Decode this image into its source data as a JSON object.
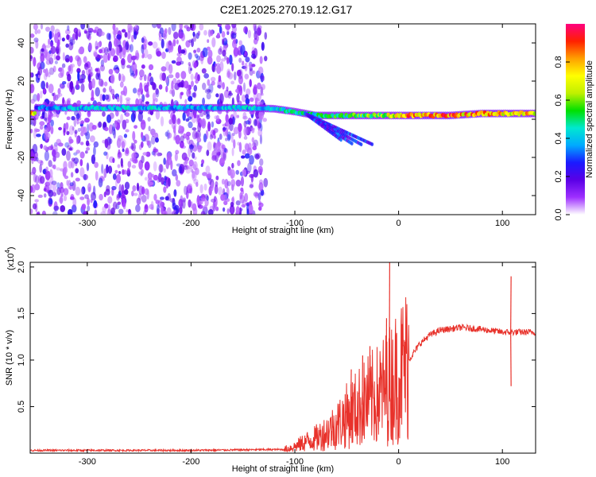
{
  "title": "C2E1.2025.270.19.12.G17",
  "chart_data": [
    {
      "type": "heatmap",
      "name": "spectrogram",
      "xlabel": "Height of straight line (km)",
      "ylabel": "Frequency (Hz)",
      "xlim": [
        -355,
        132
      ],
      "ylim": [
        -50,
        50
      ],
      "xticks": [
        -300,
        -200,
        -100,
        0,
        100
      ],
      "yticks": [
        -40,
        -20,
        0,
        20,
        40
      ],
      "colorbar": {
        "label": "Normalized spectral amplitude",
        "range": [
          0,
          1
        ],
        "ticks": [
          0.0,
          0.2,
          0.4,
          0.6,
          0.8
        ],
        "colormap": [
          "#ffffff",
          "#9e30ff",
          "#5a00e6",
          "#1a1aff",
          "#00aaff",
          "#00e8d0",
          "#00e000",
          "#c0f000",
          "#ffff00",
          "#ffa000",
          "#ff2000",
          "#ff0080"
        ]
      },
      "ridge": [
        {
          "x": -350,
          "f": 6,
          "amp": 0.35
        },
        {
          "x": -300,
          "f": 6,
          "amp": 0.45
        },
        {
          "x": -250,
          "f": 6,
          "amp": 0.45
        },
        {
          "x": -200,
          "f": 6,
          "amp": 0.4
        },
        {
          "x": -150,
          "f": 6,
          "amp": 0.45
        },
        {
          "x": -120,
          "f": 5.5,
          "amp": 0.45
        },
        {
          "x": -100,
          "f": 4,
          "amp": 0.5
        },
        {
          "x": -80,
          "f": 2,
          "amp": 0.5
        },
        {
          "x": -60,
          "f": 2,
          "amp": 0.55
        },
        {
          "x": -40,
          "f": 2,
          "amp": 0.6
        },
        {
          "x": -20,
          "f": 2,
          "amp": 0.6
        },
        {
          "x": 0,
          "f": 2,
          "amp": 0.85
        },
        {
          "x": 20,
          "f": 2,
          "amp": 0.9
        },
        {
          "x": 50,
          "f": 2,
          "amp": 0.9
        },
        {
          "x": 80,
          "f": 3,
          "amp": 0.85
        },
        {
          "x": 100,
          "f": 3,
          "amp": 0.85
        },
        {
          "x": 132,
          "f": 3,
          "amp": 0.8
        }
      ],
      "noise_region_xlim": [
        -355,
        -128
      ],
      "noise_f_range": [
        -50,
        50
      ]
    },
    {
      "type": "line",
      "name": "snr",
      "xlabel": "Height of straight line (km)",
      "ylabel": "SNR (10 * v/v)",
      "exponent_label": "(x10",
      "exponent_value": "4",
      "exponent_close": ")",
      "xlim": [
        -355,
        132
      ],
      "ylim": [
        0,
        2.05
      ],
      "xticks": [
        -300,
        -200,
        -100,
        0,
        100
      ],
      "yticks": [
        0.5,
        1.0,
        1.5,
        2.0
      ],
      "line_color": "#e8322b",
      "envelope": [
        {
          "x": -355,
          "y": 0.03
        },
        {
          "x": -200,
          "y": 0.03
        },
        {
          "x": -110,
          "y": 0.04
        },
        {
          "x": -100,
          "y": 0.07
        },
        {
          "x": -90,
          "y": 0.12
        },
        {
          "x": -80,
          "y": 0.16
        },
        {
          "x": -70,
          "y": 0.22
        },
        {
          "x": -60,
          "y": 0.3
        },
        {
          "x": -50,
          "y": 0.4
        },
        {
          "x": -40,
          "y": 0.48
        },
        {
          "x": -30,
          "y": 0.56
        },
        {
          "x": -20,
          "y": 0.62
        },
        {
          "x": -10,
          "y": 0.72
        },
        {
          "x": 0,
          "y": 0.85
        },
        {
          "x": 10,
          "y": 1.0
        },
        {
          "x": 20,
          "y": 1.17
        },
        {
          "x": 30,
          "y": 1.27
        },
        {
          "x": 40,
          "y": 1.32
        },
        {
          "x": 60,
          "y": 1.35
        },
        {
          "x": 80,
          "y": 1.33
        },
        {
          "x": 100,
          "y": 1.3
        },
        {
          "x": 120,
          "y": 1.3
        },
        {
          "x": 132,
          "y": 1.3
        }
      ],
      "spikes": [
        {
          "x": -9,
          "y": 2.05
        },
        {
          "x": -12,
          "y": 1.45
        },
        {
          "x": -28,
          "y": 1.15
        },
        {
          "x": -35,
          "y": 1.05
        },
        {
          "x": -46,
          "y": 0.9
        },
        {
          "x": 108,
          "y": 1.9
        },
        {
          "x": 108,
          "y": 0.72
        }
      ]
    }
  ]
}
